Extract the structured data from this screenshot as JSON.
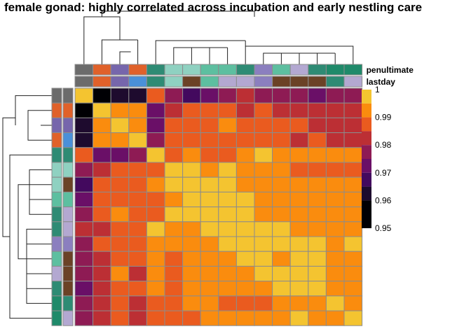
{
  "chart_data": {
    "type": "heatmap",
    "title": "female gonad: highly correlated across incubation and early nestling care",
    "annotation_rows": [
      "penultimate",
      "lastday"
    ],
    "color_scale": {
      "min": 0.95,
      "max": 1.0,
      "ticks": [
        "1",
        "0.99",
        "0.98",
        "0.97",
        "0.96",
        "0.95"
      ],
      "bins": [
        {
          "lo": 0.995,
          "color": "#F4C430"
        },
        {
          "lo": 0.99,
          "color": "#FA8C0E"
        },
        {
          "lo": 0.985,
          "color": "#EA5B1F"
        },
        {
          "lo": 0.98,
          "color": "#BC2F34"
        },
        {
          "lo": 0.975,
          "color": "#8E1B54"
        },
        {
          "lo": 0.97,
          "color": "#6A0F67"
        },
        {
          "lo": 0.965,
          "color": "#43095E"
        },
        {
          "lo": 0.96,
          "color": "#1E0B2E"
        },
        {
          "lo": 0.0,
          "color": "#000004"
        }
      ]
    },
    "column_annotations": {
      "penultimate": [
        "#6B6B6B",
        "#E0612A",
        "#7666AC",
        "#E0612A",
        "#2E8B74",
        "#8FD1C1",
        "#8FD1C1",
        "#5DBFA0",
        "#5DBFA0",
        "#2E8B74",
        "#8B7FBF",
        "#5DBFA0",
        "#B3A8D1",
        "#2E8B74",
        "#1F8A6A",
        "#1F8A6A"
      ],
      "lastday": [
        "#6B6B6B",
        "#E0612A",
        "#7666AC",
        "#4A90D9",
        "#2E8B74",
        "#8FD1C1",
        "#6B4226",
        "#5DBFA0",
        "#B3A8D1",
        "#B3A8D1",
        "#8B7FBF",
        "#6B4226",
        "#6B4226",
        "#6B4226",
        "#2E8B74",
        "#B3A8D1"
      ]
    },
    "row_annotations": {
      "penultimate": [
        "#6B6B6B",
        "#E0612A",
        "#7666AC",
        "#E0612A",
        "#2E8B74",
        "#8FD1C1",
        "#8FD1C1",
        "#5DBFA0",
        "#2E8B74",
        "#2E8B74",
        "#8B7FBF",
        "#5DBFA0",
        "#B3A8D1",
        "#2E8B74",
        "#1F8A6A",
        "#1F8A6A"
      ],
      "lastday": [
        "#6B6B6B",
        "#E0612A",
        "#7666AC",
        "#4A90D9",
        "#2E8B74",
        "#8FD1C1",
        "#6B4226",
        "#5DBFA0",
        "#B3A8D1",
        "#B3A8D1",
        "#8B7FBF",
        "#6B4226",
        "#6B4226",
        "#6B4226",
        "#2E8B74",
        "#B3A8D1"
      ]
    },
    "values": [
      [
        1.0,
        0.955,
        0.962,
        0.963,
        0.987,
        0.977,
        0.968,
        0.973,
        0.977,
        0.982,
        0.979,
        0.976,
        0.978,
        0.974,
        0.978,
        0.979
      ],
      [
        0.955,
        1.0,
        0.99,
        0.993,
        0.972,
        0.983,
        0.986,
        0.987,
        0.986,
        0.982,
        0.987,
        0.984,
        0.984,
        0.983,
        0.984,
        0.981
      ],
      [
        0.962,
        0.99,
        1.0,
        0.992,
        0.97,
        0.987,
        0.988,
        0.986,
        0.991,
        0.988,
        0.989,
        0.988,
        0.985,
        0.983,
        0.984,
        0.984
      ],
      [
        0.963,
        0.993,
        0.992,
        1.0,
        0.976,
        0.986,
        0.986,
        0.989,
        0.988,
        0.987,
        0.987,
        0.986,
        0.982,
        0.985,
        0.983,
        0.983
      ],
      [
        0.987,
        0.972,
        0.97,
        0.976,
        1.0,
        0.988,
        0.993,
        0.989,
        0.988,
        0.993,
        0.998,
        0.99,
        0.99,
        0.992,
        0.99,
        0.991
      ],
      [
        0.977,
        0.983,
        0.987,
        0.986,
        0.988,
        0.996,
        0.999,
        0.993,
        0.998,
        0.993,
        0.992,
        0.991,
        0.988,
        0.987,
        0.986,
        0.988
      ],
      [
        0.968,
        0.986,
        0.988,
        0.986,
        0.993,
        0.999,
        0.996,
        0.998,
        0.999,
        0.992,
        0.993,
        0.992,
        0.994,
        0.991,
        0.992,
        0.99
      ],
      [
        0.973,
        0.987,
        0.986,
        0.989,
        0.989,
        0.993,
        0.998,
        0.999,
        0.998,
        0.998,
        0.993,
        0.993,
        0.994,
        0.991,
        0.991,
        0.991
      ],
      [
        0.977,
        0.986,
        0.991,
        0.988,
        0.988,
        0.998,
        0.999,
        0.998,
        0.997,
        0.999,
        0.994,
        0.993,
        0.991,
        0.992,
        0.993,
        0.99
      ],
      [
        0.982,
        0.982,
        0.988,
        0.987,
        0.998,
        0.993,
        0.992,
        0.998,
        0.999,
        0.998,
        0.998,
        0.998,
        0.993,
        0.991,
        0.993,
        0.994
      ],
      [
        0.979,
        0.987,
        0.989,
        0.987,
        0.992,
        0.991,
        0.993,
        0.993,
        0.998,
        0.999,
        0.998,
        0.996,
        0.998,
        0.998,
        0.992,
        0.998
      ],
      [
        0.976,
        0.984,
        0.988,
        0.986,
        0.99,
        0.987,
        0.992,
        0.991,
        0.994,
        0.998,
        0.997,
        0.993,
        0.998,
        0.998,
        0.992,
        0.994
      ],
      [
        0.978,
        0.984,
        0.991,
        0.982,
        0.991,
        0.987,
        0.99,
        0.991,
        0.992,
        0.993,
        0.996,
        0.998,
        0.998,
        0.998,
        0.992,
        0.991
      ],
      [
        0.974,
        0.983,
        0.987,
        0.985,
        0.991,
        0.986,
        0.992,
        0.991,
        0.993,
        0.991,
        0.993,
        0.998,
        0.998,
        0.998,
        0.991,
        0.99
      ],
      [
        0.978,
        0.984,
        0.988,
        0.983,
        0.987,
        0.986,
        0.99,
        0.991,
        0.988,
        0.988,
        0.989,
        0.991,
        0.991,
        0.992,
        0.996,
        0.994
      ],
      [
        0.979,
        0.982,
        0.986,
        0.983,
        0.988,
        0.986,
        0.989,
        0.99,
        0.991,
        0.994,
        0.994,
        0.992,
        0.998,
        0.991,
        0.99,
        0.996
      ]
    ]
  }
}
